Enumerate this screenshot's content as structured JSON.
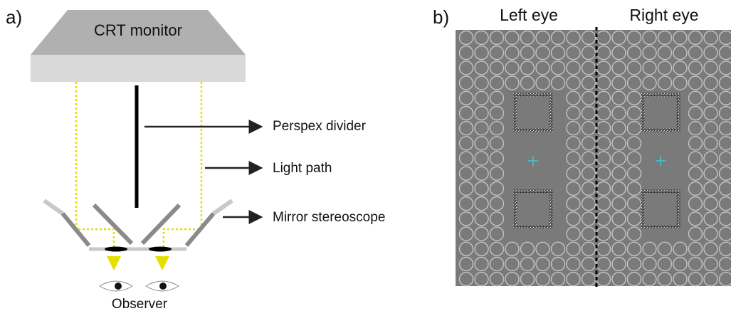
{
  "panel_a": {
    "label": "a)",
    "monitor": "CRT monitor",
    "annotations": [
      "Perspex divider",
      "Light path",
      "Mirror stereoscope"
    ],
    "observer": "Observer"
  },
  "panel_b": {
    "label": "b)",
    "left": "Left eye",
    "right": "Right eye"
  }
}
